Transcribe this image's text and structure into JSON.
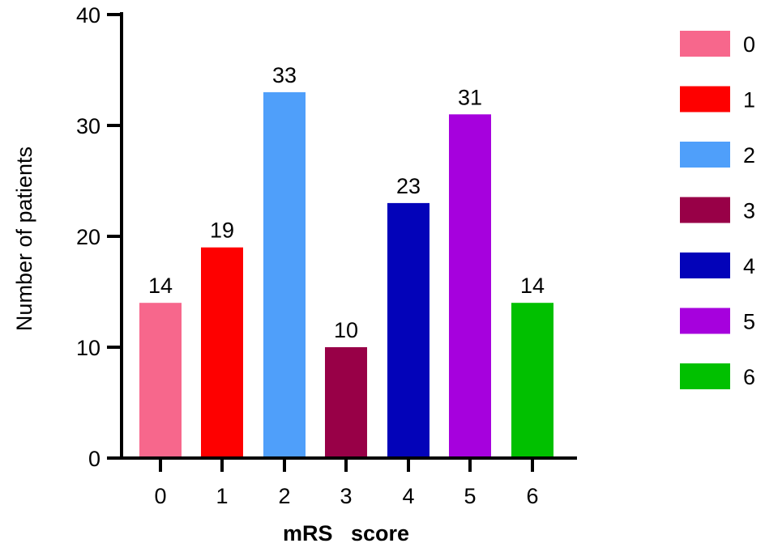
{
  "chart_data": {
    "type": "bar",
    "categories": [
      "0",
      "1",
      "2",
      "3",
      "4",
      "5",
      "6"
    ],
    "values": [
      14,
      19,
      33,
      10,
      23,
      31,
      14
    ],
    "colors": [
      "#f7678c",
      "#fe0000",
      "#4f9ffa",
      "#980047",
      "#0303b9",
      "#a601dd",
      "#01c000"
    ],
    "title": "",
    "xlabel": "mRS   score",
    "ylabel": "Number of patients",
    "ylim": [
      0,
      40
    ],
    "yticks": [
      0,
      10,
      20,
      30,
      40
    ],
    "data_labels": [
      "14",
      "19",
      "33",
      "10",
      "23",
      "31",
      "14"
    ],
    "legend": {
      "placement": "right",
      "entries": [
        "0",
        "1",
        "2",
        "3",
        "4",
        "5",
        "6"
      ]
    },
    "grid": false
  }
}
